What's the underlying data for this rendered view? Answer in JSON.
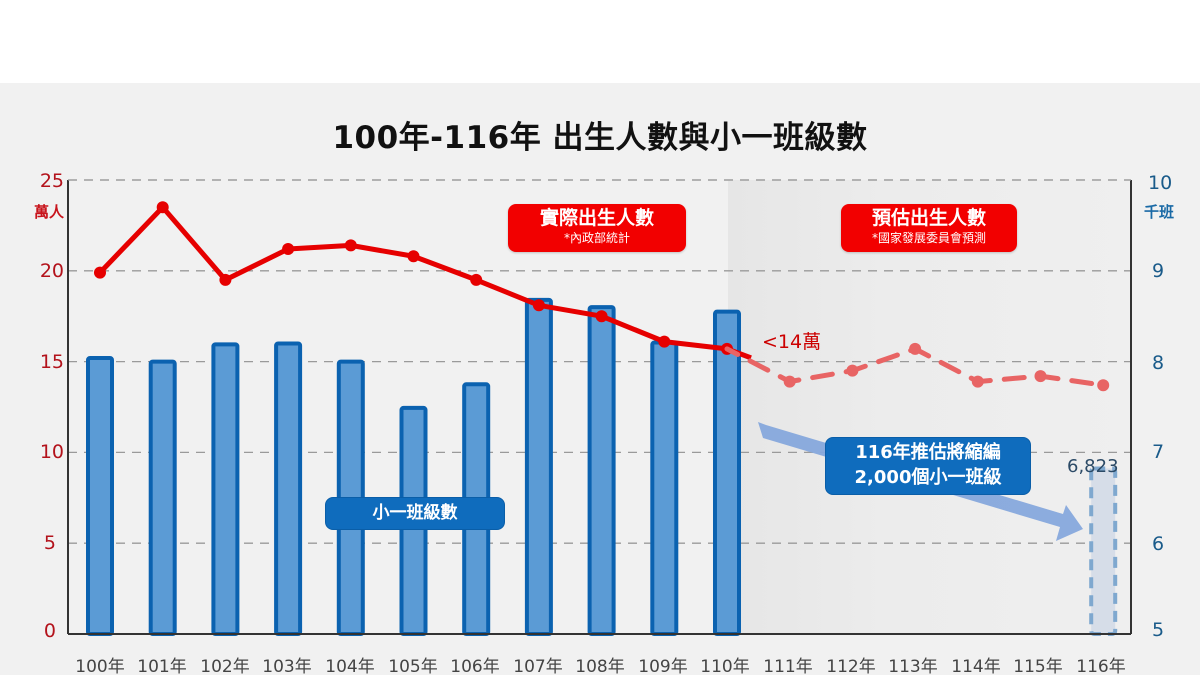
{
  "title": "100年-116年   出生人數與小一班級數",
  "axes": {
    "left": {
      "unit": "萬人",
      "ticks": [
        "25",
        "20",
        "15",
        "10",
        "5",
        "0"
      ],
      "color": "#c8141c"
    },
    "right": {
      "unit": "千班",
      "ticks": [
        "10",
        "9",
        "8",
        "7",
        "6",
        "5"
      ],
      "color": "#1a6aa6"
    },
    "x_ticks": [
      "100年",
      "101年",
      "102年",
      "103年",
      "104年",
      "105年",
      "106年",
      "107年",
      "108年",
      "109年",
      "110年",
      "111年",
      "112年",
      "113年",
      "114年",
      "115年",
      "116年"
    ]
  },
  "badges": {
    "actual": {
      "title": "實際出生人數",
      "note": "*內政部統計"
    },
    "forecast": {
      "title": "預估出生人數",
      "note": "*國家發展委員會預測"
    },
    "classes": {
      "label": "小一班級數"
    },
    "reduction": {
      "line1": "116年推估將縮編",
      "line2": "2,000個小一班級"
    }
  },
  "annotations": {
    "births_110": "<14萬",
    "classes_116": "6,823"
  },
  "colors": {
    "births_line": "#e60000",
    "births_forecast": "#e86464",
    "bar_fill": "#5b9bd5",
    "bar_border": "#0b62b0",
    "arrow": "#86a8dc"
  },
  "chart_data": {
    "type": "bar+line",
    "title": "100年-116年 出生人數與小一班級數",
    "categories": [
      "100年",
      "101年",
      "102年",
      "103年",
      "104年",
      "105年",
      "106年",
      "107年",
      "108年",
      "109年",
      "110年",
      "111年",
      "112年",
      "113年",
      "114年",
      "115年",
      "116年"
    ],
    "series": [
      {
        "name": "實際出生人數 / 預估出生人數 (萬人)",
        "type": "line",
        "axis": "left",
        "values": [
          19.9,
          23.5,
          19.5,
          21.2,
          21.4,
          20.8,
          19.5,
          18.1,
          17.5,
          16.1,
          15.7,
          13.9,
          14.5,
          15.7,
          13.9,
          14.2,
          13.7
        ],
        "actual_range": [
          "100年",
          "110年"
        ],
        "forecast_range": [
          "111年",
          "116年"
        ]
      },
      {
        "name": "小一班級數 (千班)",
        "type": "bar",
        "axis": "right",
        "values": [
          8.04,
          8.0,
          8.19,
          8.2,
          8.0,
          7.49,
          7.75,
          8.68,
          8.6,
          8.21,
          8.55,
          null,
          null,
          null,
          null,
          null,
          6.823
        ],
        "projected": [
          "116年"
        ]
      }
    ],
    "ylabel_left": "萬人",
    "ylim_left": [
      0,
      25
    ],
    "ylabel_right": "千班",
    "ylim_right": [
      5,
      10
    ],
    "grid": "dashed horizontal",
    "annotations": [
      "<14萬",
      "6,823",
      "116年推估將縮編 2,000個小一班級",
      "實際出生人數 *內政部統計",
      "預估出生人數 *國家發展委員會預測",
      "小一班級數"
    ]
  }
}
